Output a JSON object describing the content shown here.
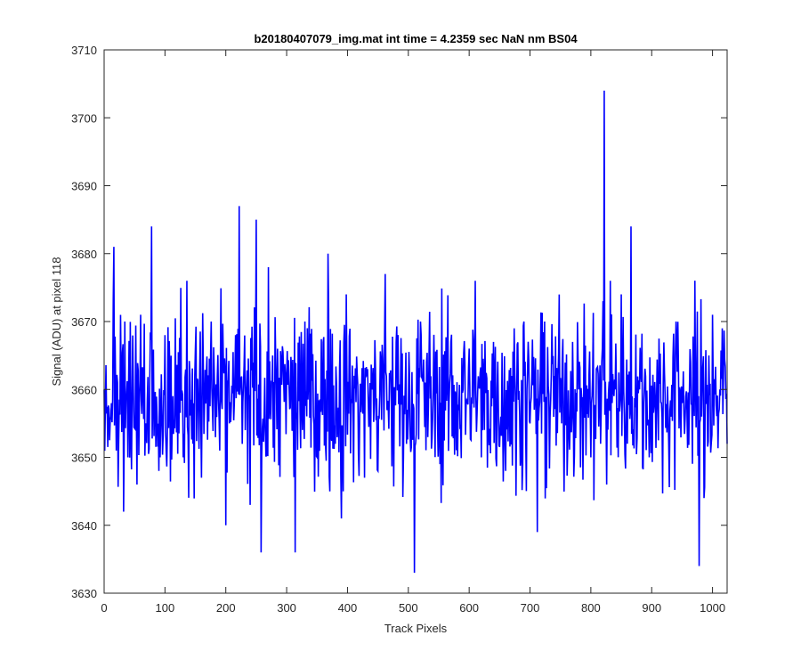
{
  "chart_data": {
    "type": "line",
    "title": "b20180407079_img.mat int time = 4.2359 sec  NaN nm BS04",
    "xlabel": "Track Pixels",
    "ylabel": "Signal (ADU) at pixel 118",
    "xlim": [
      0,
      1024
    ],
    "ylim": [
      3630,
      3710
    ],
    "xticks": [
      "0",
      "100",
      "200",
      "300",
      "400",
      "500",
      "600",
      "700",
      "800",
      "900",
      "1000"
    ],
    "yticks": [
      "3630",
      "3640",
      "3650",
      "3660",
      "3670",
      "3680",
      "3690",
      "3700",
      "3710"
    ],
    "grid": false,
    "series": [
      {
        "color": "#0000ff",
        "points_x": [
          0,
          16,
          20,
          32,
          34,
          48,
          54,
          60,
          68,
          78,
          90,
          100,
          112,
          130,
          136,
          150,
          160,
          176,
          190,
          200,
          216,
          222,
          232,
          240,
          250,
          258,
          270,
          285,
          300,
          314,
          330,
          350,
          368,
          380,
          390,
          398,
          420,
          440,
          450,
          462,
          480,
          500,
          510,
          520,
          540,
          552,
          570,
          590,
          610,
          620,
          640,
          652,
          660,
          670,
          690,
          700,
          712,
          724,
          740,
          752,
          770,
          780,
          800,
          816,
          820,
          822,
          826,
          832,
          840,
          850,
          860,
          866,
          880,
          896,
          910,
          928,
          940,
          950,
          964,
          978,
          982,
          986,
          994,
          1000,
          1012,
          1016,
          1024
        ],
        "points_y": [
          3660,
          3681,
          3651,
          3642,
          3670,
          3660,
          3646,
          3671,
          3655,
          3684,
          3648,
          3668,
          3655,
          3650,
          3676,
          3666,
          3647,
          3670,
          3651,
          3640,
          3668,
          3687,
          3654,
          3643,
          3685,
          3636,
          3678,
          3666,
          3662,
          3636,
          3670,
          3650,
          3680,
          3652,
          3641,
          3674,
          3656,
          3660,
          3648,
          3677,
          3667,
          3656,
          3633,
          3670,
          3656,
          3649,
          3667,
          3660,
          3676,
          3650,
          3667,
          3656,
          3648,
          3662,
          3670,
          3655,
          3639,
          3670,
          3662,
          3655,
          3667,
          3660,
          3650,
          3652,
          3673,
          3704,
          3646,
          3676,
          3660,
          3674,
          3652,
          3684,
          3660,
          3650,
          3658,
          3652,
          3670,
          3658,
          3664,
          3634,
          3656,
          3644,
          3665,
          3671,
          3660,
          3669,
          3652
        ]
      }
    ]
  }
}
